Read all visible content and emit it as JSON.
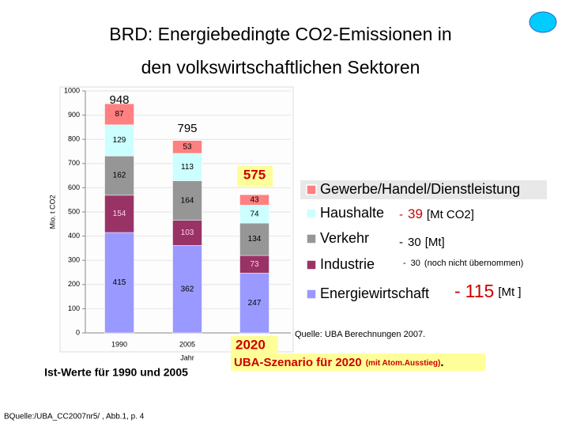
{
  "chart_data": {
    "type": "bar",
    "stacked": true,
    "title": [
      "BRD: Energiebedingte CO2-Emissionen in",
      "den volkswirtschaftlichen Sektoren"
    ],
    "y_label": "Mio. t CO2",
    "x_label": "Jahr",
    "categories": [
      "1990",
      "2005",
      null
    ],
    "series": [
      {
        "name": "Energiewirtschaft",
        "color": "#9999ff",
        "label_color": "#000000",
        "values": [
          415,
          362,
          247
        ]
      },
      {
        "name": "Industrie",
        "color": "#993366",
        "label_color": "#ffccee",
        "values": [
          154,
          103,
          73
        ]
      },
      {
        "name": "Verkehr",
        "color": "#969696",
        "label_color": "#000000",
        "values": [
          162,
          164,
          134
        ]
      },
      {
        "name": "Haushalte",
        "color": "#ccffff",
        "label_color": "#000000",
        "values": [
          129,
          113,
          74
        ]
      },
      {
        "name": "Gewerbe/Handel/Dienstleistung",
        "color": "#ff8080",
        "label_color": "#000000",
        "values": [
          87,
          53,
          43
        ]
      }
    ],
    "totals": [
      948,
      795,
      575
    ],
    "ylim": [
      0,
      1000
    ],
    "yticks": [
      0,
      100,
      200,
      300,
      400,
      500,
      600,
      700,
      800,
      900,
      1000
    ],
    "grid": true,
    "annotations": [
      {
        "mark": "-",
        "value": "39",
        "unit": "[Mt CO2]"
      },
      {
        "mark": "-",
        "value": "30",
        "unit": "[Mt]"
      },
      {
        "mark": "-",
        "value": "30",
        "unit": "(noch nicht übernommen)"
      },
      {
        "mark": "-",
        "value": "115",
        "unit": "[Mt ]"
      }
    ],
    "source": "Quelle: UBA Berechnungen 2007.",
    "scenario_year": "2020",
    "scenario": "UBA-Szenario für 2020",
    "scenario_note": "(mit Atom.Ausstieg)",
    "scenario_end": ".",
    "actuals_note": "Ist-Werte für 1990 und 2005",
    "footer": "BQuelle:/UBA_CC2007nr5/ , Abb.1, p. 4"
  }
}
